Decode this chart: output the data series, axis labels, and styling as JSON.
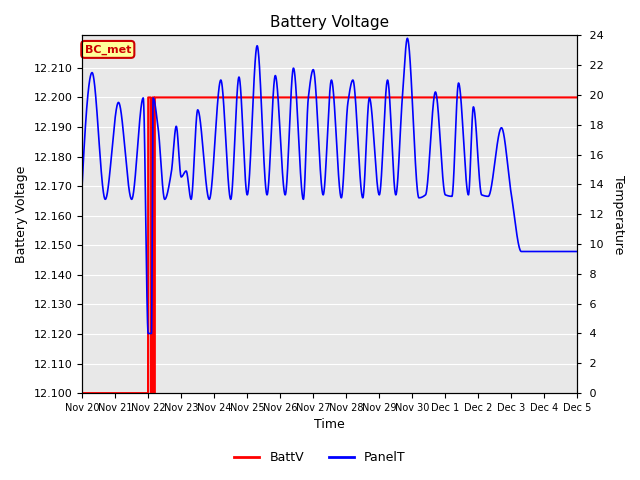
{
  "title": "Battery Voltage",
  "xlabel": "Time",
  "ylabel_left": "Battery Voltage",
  "ylabel_right": "Temperature",
  "ylim_left": [
    12.1,
    12.221
  ],
  "ylim_right": [
    0,
    24
  ],
  "yticks_left": [
    12.1,
    12.11,
    12.12,
    12.13,
    12.14,
    12.15,
    12.16,
    12.17,
    12.18,
    12.19,
    12.2,
    12.21
  ],
  "yticks_right": [
    0,
    2,
    4,
    6,
    8,
    10,
    12,
    14,
    16,
    18,
    20,
    22,
    24
  ],
  "background_color": "#ffffff",
  "plot_bg_color": "#e8e8e8",
  "grid_color": "#ffffff",
  "annotation_box": "BC_met",
  "annotation_color": "#cc0000",
  "annotation_bg": "#ffff99",
  "batt_color": "#ff0000",
  "panel_color": "#0000ff",
  "legend_items": [
    "BattV",
    "PanelT"
  ],
  "x_labels": [
    "Nov 20",
    "Nov 21",
    "Nov 22",
    "Nov 23",
    "Nov 24",
    "Nov 25",
    "Nov 26",
    "Nov 27",
    "Nov 28",
    "Nov 29",
    "Nov 30",
    "Dec 1",
    "Dec 2",
    "Dec 3",
    "Dec 4",
    "Dec 5"
  ],
  "xlim": [
    0,
    15
  ]
}
